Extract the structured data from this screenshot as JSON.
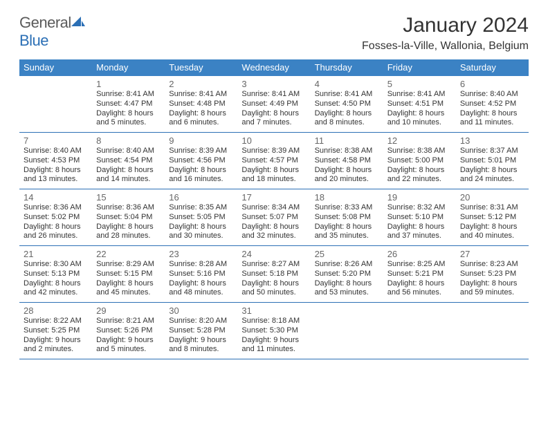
{
  "colors": {
    "header_bg": "#3b82c4",
    "header_text": "#ffffff",
    "week_border": "#2b6fb5",
    "body_text": "#333333",
    "daynum_text": "#666666",
    "logo_gray": "#5a5a5a",
    "logo_blue": "#2b6fb5",
    "background": "#ffffff"
  },
  "typography": {
    "title_fontsize": 30,
    "location_fontsize": 16,
    "header_fontsize": 13,
    "daynum_fontsize": 13,
    "body_fontsize": 11
  },
  "logo": {
    "text_gray": "General",
    "text_blue": "Blue",
    "shape_fill": "#2b6fb5"
  },
  "title": "January 2024",
  "location": "Fosses-la-Ville, Wallonia, Belgium",
  "weekdays": [
    "Sunday",
    "Monday",
    "Tuesday",
    "Wednesday",
    "Thursday",
    "Friday",
    "Saturday"
  ],
  "weeks": [
    [
      null,
      {
        "n": "1",
        "sr": "Sunrise: 8:41 AM",
        "ss": "Sunset: 4:47 PM",
        "d1": "Daylight: 8 hours",
        "d2": "and 5 minutes."
      },
      {
        "n": "2",
        "sr": "Sunrise: 8:41 AM",
        "ss": "Sunset: 4:48 PM",
        "d1": "Daylight: 8 hours",
        "d2": "and 6 minutes."
      },
      {
        "n": "3",
        "sr": "Sunrise: 8:41 AM",
        "ss": "Sunset: 4:49 PM",
        "d1": "Daylight: 8 hours",
        "d2": "and 7 minutes."
      },
      {
        "n": "4",
        "sr": "Sunrise: 8:41 AM",
        "ss": "Sunset: 4:50 PM",
        "d1": "Daylight: 8 hours",
        "d2": "and 8 minutes."
      },
      {
        "n": "5",
        "sr": "Sunrise: 8:41 AM",
        "ss": "Sunset: 4:51 PM",
        "d1": "Daylight: 8 hours",
        "d2": "and 10 minutes."
      },
      {
        "n": "6",
        "sr": "Sunrise: 8:40 AM",
        "ss": "Sunset: 4:52 PM",
        "d1": "Daylight: 8 hours",
        "d2": "and 11 minutes."
      }
    ],
    [
      {
        "n": "7",
        "sr": "Sunrise: 8:40 AM",
        "ss": "Sunset: 4:53 PM",
        "d1": "Daylight: 8 hours",
        "d2": "and 13 minutes."
      },
      {
        "n": "8",
        "sr": "Sunrise: 8:40 AM",
        "ss": "Sunset: 4:54 PM",
        "d1": "Daylight: 8 hours",
        "d2": "and 14 minutes."
      },
      {
        "n": "9",
        "sr": "Sunrise: 8:39 AM",
        "ss": "Sunset: 4:56 PM",
        "d1": "Daylight: 8 hours",
        "d2": "and 16 minutes."
      },
      {
        "n": "10",
        "sr": "Sunrise: 8:39 AM",
        "ss": "Sunset: 4:57 PM",
        "d1": "Daylight: 8 hours",
        "d2": "and 18 minutes."
      },
      {
        "n": "11",
        "sr": "Sunrise: 8:38 AM",
        "ss": "Sunset: 4:58 PM",
        "d1": "Daylight: 8 hours",
        "d2": "and 20 minutes."
      },
      {
        "n": "12",
        "sr": "Sunrise: 8:38 AM",
        "ss": "Sunset: 5:00 PM",
        "d1": "Daylight: 8 hours",
        "d2": "and 22 minutes."
      },
      {
        "n": "13",
        "sr": "Sunrise: 8:37 AM",
        "ss": "Sunset: 5:01 PM",
        "d1": "Daylight: 8 hours",
        "d2": "and 24 minutes."
      }
    ],
    [
      {
        "n": "14",
        "sr": "Sunrise: 8:36 AM",
        "ss": "Sunset: 5:02 PM",
        "d1": "Daylight: 8 hours",
        "d2": "and 26 minutes."
      },
      {
        "n": "15",
        "sr": "Sunrise: 8:36 AM",
        "ss": "Sunset: 5:04 PM",
        "d1": "Daylight: 8 hours",
        "d2": "and 28 minutes."
      },
      {
        "n": "16",
        "sr": "Sunrise: 8:35 AM",
        "ss": "Sunset: 5:05 PM",
        "d1": "Daylight: 8 hours",
        "d2": "and 30 minutes."
      },
      {
        "n": "17",
        "sr": "Sunrise: 8:34 AM",
        "ss": "Sunset: 5:07 PM",
        "d1": "Daylight: 8 hours",
        "d2": "and 32 minutes."
      },
      {
        "n": "18",
        "sr": "Sunrise: 8:33 AM",
        "ss": "Sunset: 5:08 PM",
        "d1": "Daylight: 8 hours",
        "d2": "and 35 minutes."
      },
      {
        "n": "19",
        "sr": "Sunrise: 8:32 AM",
        "ss": "Sunset: 5:10 PM",
        "d1": "Daylight: 8 hours",
        "d2": "and 37 minutes."
      },
      {
        "n": "20",
        "sr": "Sunrise: 8:31 AM",
        "ss": "Sunset: 5:12 PM",
        "d1": "Daylight: 8 hours",
        "d2": "and 40 minutes."
      }
    ],
    [
      {
        "n": "21",
        "sr": "Sunrise: 8:30 AM",
        "ss": "Sunset: 5:13 PM",
        "d1": "Daylight: 8 hours",
        "d2": "and 42 minutes."
      },
      {
        "n": "22",
        "sr": "Sunrise: 8:29 AM",
        "ss": "Sunset: 5:15 PM",
        "d1": "Daylight: 8 hours",
        "d2": "and 45 minutes."
      },
      {
        "n": "23",
        "sr": "Sunrise: 8:28 AM",
        "ss": "Sunset: 5:16 PM",
        "d1": "Daylight: 8 hours",
        "d2": "and 48 minutes."
      },
      {
        "n": "24",
        "sr": "Sunrise: 8:27 AM",
        "ss": "Sunset: 5:18 PM",
        "d1": "Daylight: 8 hours",
        "d2": "and 50 minutes."
      },
      {
        "n": "25",
        "sr": "Sunrise: 8:26 AM",
        "ss": "Sunset: 5:20 PM",
        "d1": "Daylight: 8 hours",
        "d2": "and 53 minutes."
      },
      {
        "n": "26",
        "sr": "Sunrise: 8:25 AM",
        "ss": "Sunset: 5:21 PM",
        "d1": "Daylight: 8 hours",
        "d2": "and 56 minutes."
      },
      {
        "n": "27",
        "sr": "Sunrise: 8:23 AM",
        "ss": "Sunset: 5:23 PM",
        "d1": "Daylight: 8 hours",
        "d2": "and 59 minutes."
      }
    ],
    [
      {
        "n": "28",
        "sr": "Sunrise: 8:22 AM",
        "ss": "Sunset: 5:25 PM",
        "d1": "Daylight: 9 hours",
        "d2": "and 2 minutes."
      },
      {
        "n": "29",
        "sr": "Sunrise: 8:21 AM",
        "ss": "Sunset: 5:26 PM",
        "d1": "Daylight: 9 hours",
        "d2": "and 5 minutes."
      },
      {
        "n": "30",
        "sr": "Sunrise: 8:20 AM",
        "ss": "Sunset: 5:28 PM",
        "d1": "Daylight: 9 hours",
        "d2": "and 8 minutes."
      },
      {
        "n": "31",
        "sr": "Sunrise: 8:18 AM",
        "ss": "Sunset: 5:30 PM",
        "d1": "Daylight: 9 hours",
        "d2": "and 11 minutes."
      },
      null,
      null,
      null
    ]
  ]
}
